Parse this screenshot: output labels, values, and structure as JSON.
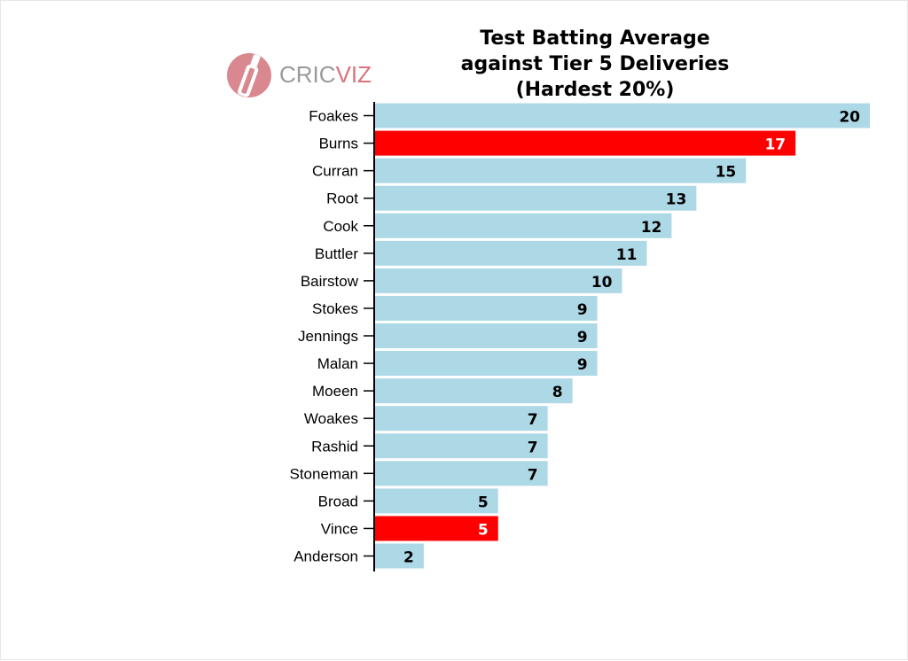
{
  "logo": {
    "text_a": "CRIC",
    "text_b": "VIZ"
  },
  "colors": {
    "bar_default": "#add8e6",
    "bar_highlight": "#ff0000",
    "logo_circle": "#d9888f",
    "logo_text": "#9a9a9a",
    "logo_text_accent": "#d9737c"
  },
  "chart_data": {
    "type": "bar",
    "orientation": "horizontal",
    "title": [
      "Test Batting Average",
      "against Tier 5 Deliveries",
      "(Hardest 20%)"
    ],
    "xlim": [
      0,
      20
    ],
    "categories": [
      "Foakes",
      "Burns",
      "Curran",
      "Root",
      "Cook",
      "Buttler",
      "Bairstow",
      "Stokes",
      "Jennings",
      "Malan",
      "Moeen",
      "Woakes",
      "Rashid",
      "Stoneman",
      "Broad",
      "Vince",
      "Anderson"
    ],
    "values": [
      20,
      17,
      15,
      13,
      12,
      11,
      10,
      9,
      9,
      9,
      8,
      7,
      7,
      7,
      5,
      5,
      2
    ],
    "highlighted": [
      "Burns",
      "Vince"
    ]
  }
}
